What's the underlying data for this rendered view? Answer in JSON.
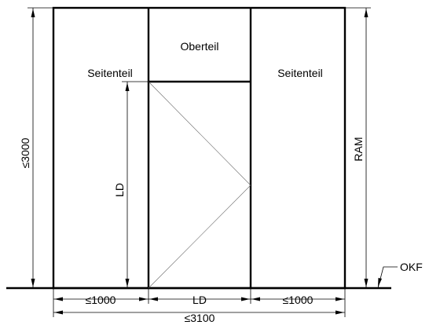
{
  "panels": {
    "left": "Seitenteil",
    "top": "Oberteil",
    "right": "Seitenteil"
  },
  "dimensions": {
    "total_height": "≤3000",
    "door_height": "LD",
    "ram": "RAM",
    "okf": "OKF",
    "left_width": "≤1000",
    "door_width": "LD",
    "right_width": "≤1000",
    "total_width": "≤3100"
  }
}
